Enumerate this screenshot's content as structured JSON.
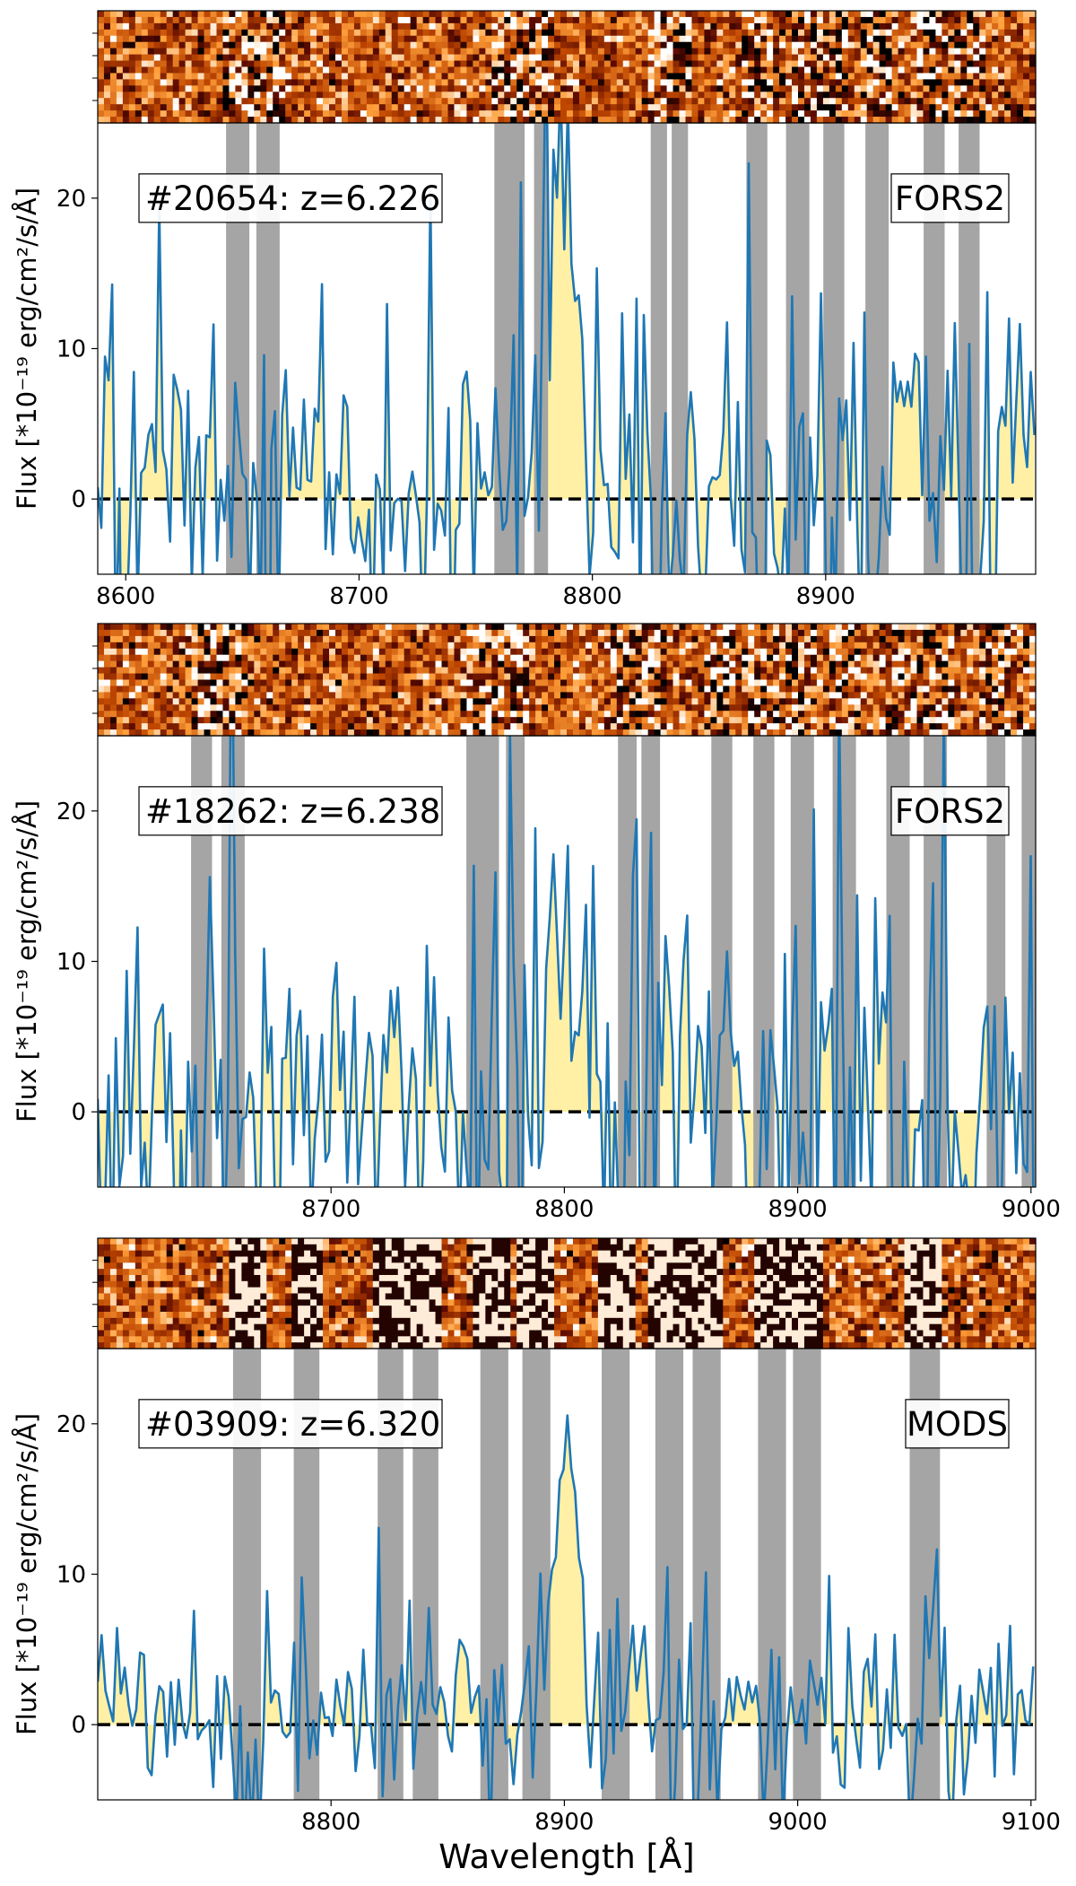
{
  "figure": {
    "ylabel": "Flux [*10⁻¹⁹ erg/cm²/s/Å]",
    "xlabel": "Wavelength [Å]"
  },
  "colors": {
    "spectrum": "#1f77b4",
    "fill": "#fff0a6",
    "mask": "#a0a0a0",
    "zero_line": "#000000"
  },
  "chart_data": [
    {
      "type": "line",
      "title": "#20654: z=6.226",
      "instrument": "FORS2",
      "xlabel": "",
      "ylabel": "Flux [*10⁻¹⁹ erg/cm²/s/Å]",
      "xlim": [
        8588,
        8990
      ],
      "ylim": [
        -5,
        25
      ],
      "xticks": [
        8600,
        8700,
        8800,
        8900
      ],
      "yticks": [
        0,
        10,
        20
      ],
      "zero_line": 0,
      "masked_skylines": [
        [
          8643,
          8653
        ],
        [
          8656,
          8666
        ],
        [
          8758,
          8771
        ],
        [
          8775,
          8781
        ],
        [
          8825,
          8832
        ],
        [
          8834,
          8841
        ],
        [
          8866,
          8875
        ],
        [
          8883,
          8893
        ],
        [
          8899,
          8908
        ],
        [
          8917,
          8927
        ],
        [
          8942,
          8951
        ],
        [
          8957,
          8966
        ]
      ],
      "peak": {
        "x": 8786,
        "y": 23
      },
      "seed": 20654,
      "spectrum_stddev_estimate": 6.5
    },
    {
      "type": "line",
      "title": "#18262: z=6.238",
      "instrument": "FORS2",
      "xlabel": "",
      "ylabel": "Flux [*10⁻¹⁹ erg/cm²/s/Å]",
      "xlim": [
        8600,
        9002
      ],
      "ylim": [
        -5,
        25
      ],
      "xticks": [
        8700,
        8800,
        8900,
        9000
      ],
      "yticks": [
        0,
        10,
        20
      ],
      "zero_line": 0,
      "masked_skylines": [
        [
          8640,
          8649
        ],
        [
          8653,
          8663
        ],
        [
          8758,
          8772
        ],
        [
          8775,
          8783
        ],
        [
          8823,
          8831
        ],
        [
          8833,
          8841
        ],
        [
          8863,
          8872
        ],
        [
          8881,
          8890
        ],
        [
          8897,
          8907
        ],
        [
          8915,
          8925
        ],
        [
          8938,
          8948
        ],
        [
          8954,
          8964
        ],
        [
          8981,
          8989
        ],
        [
          8996,
          9002
        ]
      ],
      "peak": {
        "x": 8800,
        "y": 16
      },
      "seed": 18262,
      "spectrum_stddev_estimate": 6.0
    },
    {
      "type": "line",
      "title": "#03909: z=6.320",
      "instrument": "MODS",
      "xlabel": "Wavelength [Å]",
      "ylabel": "Flux [*10⁻¹⁹ erg/cm²/s/Å]",
      "xlim": [
        8700,
        9102
      ],
      "ylim": [
        -5,
        25
      ],
      "xticks": [
        8800,
        8900,
        9000,
        9100
      ],
      "yticks": [
        0,
        10,
        20
      ],
      "zero_line": 0,
      "masked_skylines": [
        [
          8758,
          8770
        ],
        [
          8784,
          8795
        ],
        [
          8820,
          8831
        ],
        [
          8835,
          8846
        ],
        [
          8864,
          8876
        ],
        [
          8882,
          8894
        ],
        [
          8916,
          8928
        ],
        [
          8939,
          8951
        ],
        [
          8955,
          8967
        ],
        [
          8983,
          8995
        ],
        [
          8998,
          9010
        ],
        [
          9048,
          9061
        ]
      ],
      "peak": {
        "x": 8900,
        "y": 18.5
      },
      "seed": 3909,
      "spectrum_stddev_estimate": 3.0
    }
  ]
}
